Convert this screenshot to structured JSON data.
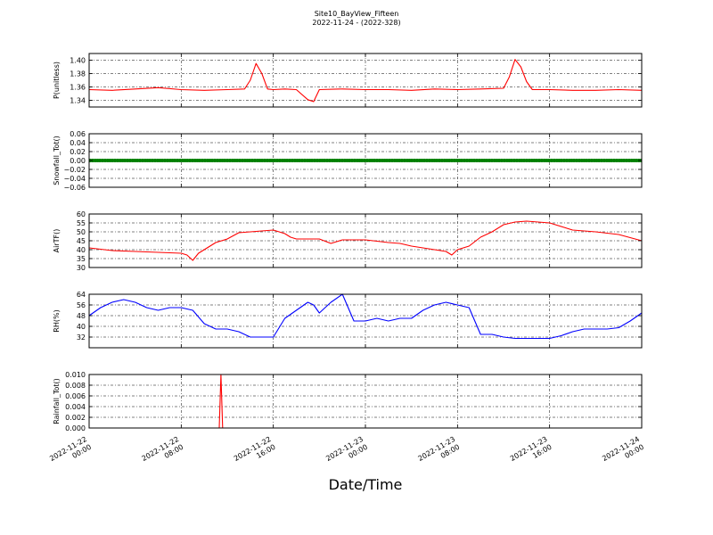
{
  "figure": {
    "title": "Site10_BayView_Fifteen",
    "subtitle": "2022-11-24 - (2022-328)",
    "xlabel": "Date/Time"
  },
  "chart_data": [
    {
      "type": "line",
      "ylabel": "P(unitless)",
      "color": "#ff0000",
      "ylim": [
        1.33,
        1.41
      ],
      "yticks": [
        1.34,
        1.36,
        1.38,
        1.4
      ],
      "ytick_labels": [
        "1.34",
        "1.36",
        "1.38",
        "1.40"
      ],
      "grid": true,
      "x_hours": [
        0,
        2,
        4,
        6,
        8,
        10,
        12,
        13.5,
        14,
        14.5,
        15,
        15.5,
        16,
        17,
        18,
        19,
        19.5,
        20,
        22,
        24,
        26,
        28,
        30,
        32,
        34,
        36,
        36.5,
        37,
        37.5,
        38,
        38.5,
        40,
        42,
        44,
        46,
        48
      ],
      "values": [
        1.356,
        1.355,
        1.357,
        1.359,
        1.356,
        1.355,
        1.356,
        1.357,
        1.37,
        1.395,
        1.38,
        1.357,
        1.356,
        1.357,
        1.356,
        1.341,
        1.338,
        1.356,
        1.357,
        1.356,
        1.356,
        1.355,
        1.357,
        1.356,
        1.357,
        1.358,
        1.375,
        1.401,
        1.39,
        1.368,
        1.356,
        1.356,
        1.355,
        1.355,
        1.356,
        1.355
      ]
    },
    {
      "type": "line",
      "ylabel": "Snowfall_Tot()",
      "color": "#008000",
      "ylim": [
        -0.06,
        0.06
      ],
      "yticks": [
        -0.06,
        -0.04,
        -0.02,
        0.0,
        0.02,
        0.04,
        0.06
      ],
      "ytick_labels": [
        "−0.06",
        "−0.04",
        "−0.02",
        "0.00",
        "0.02",
        "0.04",
        "0.06"
      ],
      "grid": true,
      "x_hours": [
        0,
        48
      ],
      "values": [
        0,
        0
      ]
    },
    {
      "type": "line",
      "ylabel": "AirTF()",
      "color": "#ff0000",
      "ylim": [
        30,
        60
      ],
      "yticks": [
        30,
        35,
        40,
        45,
        50,
        55,
        60
      ],
      "ytick_labels": [
        "30",
        "35",
        "40",
        "45",
        "50",
        "55",
        "60"
      ],
      "grid": true,
      "x_hours": [
        0,
        2,
        4,
        6,
        8,
        8.5,
        9,
        9.5,
        10,
        11,
        12,
        13,
        14,
        15,
        16,
        17,
        17.5,
        18,
        20,
        21,
        22,
        24,
        26,
        27,
        28,
        29,
        30,
        31,
        31.5,
        32,
        33,
        34,
        35,
        36,
        37,
        38,
        39,
        40,
        42,
        44,
        46,
        48
      ],
      "values": [
        41,
        39.5,
        39,
        38.5,
        38,
        37,
        34,
        38,
        40,
        44,
        46,
        49.5,
        50,
        50.5,
        51,
        49,
        47,
        46,
        46,
        43.5,
        45.5,
        45.5,
        44,
        43.5,
        42,
        41,
        40,
        39,
        37,
        40,
        42,
        47,
        50,
        54,
        55.5,
        56,
        55.5,
        55,
        51,
        50,
        48.5,
        45
      ]
    },
    {
      "type": "line",
      "ylabel": "RH(%)",
      "color": "#0000ff",
      "ylim": [
        24,
        64
      ],
      "yticks": [
        32,
        40,
        48,
        56,
        64
      ],
      "ytick_labels": [
        "32",
        "40",
        "48",
        "56",
        "64"
      ],
      "grid": true,
      "x_hours": [
        0,
        1,
        2,
        3,
        4,
        5,
        6,
        7,
        8,
        9,
        10,
        11,
        12,
        13,
        14,
        15,
        16,
        17,
        18,
        19,
        19.5,
        20,
        21,
        22,
        23,
        24,
        25,
        26,
        27,
        28,
        29,
        30,
        31,
        32,
        33,
        34,
        35,
        36,
        37,
        38,
        39,
        40,
        41,
        42,
        43,
        44,
        45,
        46,
        47,
        48
      ],
      "values": [
        48,
        54,
        58,
        60,
        58,
        54,
        52,
        54,
        54,
        52,
        42,
        38,
        38,
        36,
        32,
        32,
        32,
        46,
        52,
        58,
        56,
        50,
        58,
        64,
        44,
        44,
        46,
        44,
        46,
        46,
        52,
        56,
        58,
        56,
        54,
        34,
        34,
        32,
        31,
        31,
        31,
        31,
        33,
        36,
        38,
        38,
        38,
        39,
        44,
        50
      ]
    },
    {
      "type": "line",
      "ylabel": "Rainfall_Tot()",
      "color": "#ff0000",
      "ylim": [
        0,
        0.01
      ],
      "yticks": [
        0.0,
        0.002,
        0.004,
        0.006,
        0.008,
        0.01
      ],
      "ytick_labels": [
        "0.000",
        "0.002",
        "0.004",
        "0.006",
        "0.008",
        "0.010"
      ],
      "grid": true,
      "x_hours": [
        0,
        11.3,
        11.45,
        11.6,
        11.75,
        48
      ],
      "values": [
        0,
        0,
        0.01,
        0,
        0,
        0
      ]
    }
  ],
  "x_axis": {
    "range_hours": [
      0,
      48
    ],
    "tick_hours": [
      0,
      8,
      16,
      24,
      32,
      40,
      48
    ],
    "tick_labels": [
      [
        "2022-11-22",
        "00:00"
      ],
      [
        "2022-11-22",
        "08:00"
      ],
      [
        "2022-11-22",
        "16:00"
      ],
      [
        "2022-11-23",
        "00:00"
      ],
      [
        "2022-11-23",
        "08:00"
      ],
      [
        "2022-11-23",
        "16:00"
      ],
      [
        "2022-11-24",
        "00:00"
      ]
    ]
  }
}
